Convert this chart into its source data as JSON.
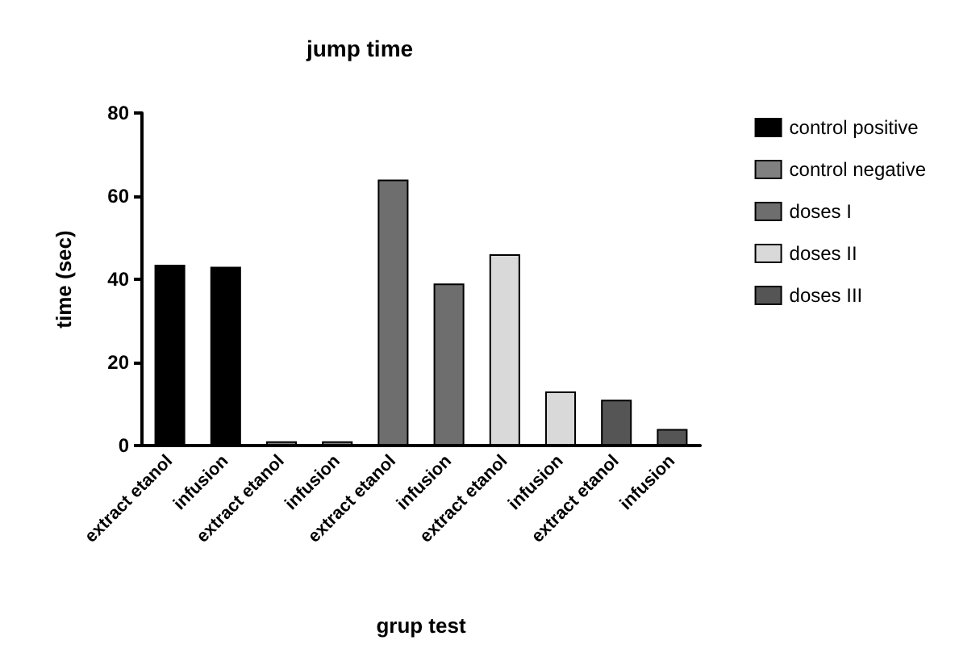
{
  "chart_data": {
    "type": "bar",
    "title": "jump time",
    "xlabel": "grup test",
    "ylabel": "time (sec)",
    "categories": [
      "extract etanol",
      "infusion",
      "extract etanol",
      "infusion",
      "extract etanol",
      "infusion",
      "extract etanol",
      "infusion",
      "extract etanol",
      "infusion"
    ],
    "series": [
      {
        "name": "control positive",
        "color": "#000000",
        "values": [
          43.5,
          43,
          null,
          null,
          null,
          null,
          null,
          null,
          null,
          null
        ]
      },
      {
        "name": "control negative",
        "color": "#808080",
        "values": [
          null,
          null,
          1,
          1,
          null,
          null,
          null,
          null,
          null,
          null
        ]
      },
      {
        "name": "doses I",
        "color": "#6e6e6e",
        "values": [
          null,
          null,
          null,
          null,
          64,
          39,
          null,
          null,
          null,
          null
        ]
      },
      {
        "name": "doses II",
        "color": "#d9d9d9",
        "values": [
          null,
          null,
          null,
          null,
          null,
          null,
          46,
          13,
          null,
          null
        ]
      },
      {
        "name": "doses III",
        "color": "#555555",
        "values": [
          null,
          null,
          null,
          null,
          null,
          null,
          null,
          null,
          11,
          4
        ]
      }
    ],
    "stacked": true,
    "ylim": [
      0,
      80
    ],
    "yticks": [
      0,
      20,
      40,
      60,
      80
    ],
    "grid": false,
    "legend": "right"
  }
}
